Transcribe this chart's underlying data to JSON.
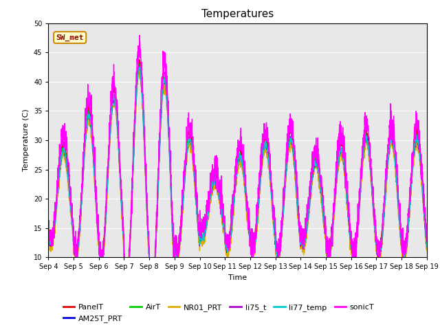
{
  "title": "Temperatures",
  "xlabel": "Time",
  "ylabel": "Temperature (C)",
  "ylim": [
    10,
    50
  ],
  "yticks": [
    10,
    15,
    20,
    25,
    30,
    35,
    40,
    45,
    50
  ],
  "background_color": "#e8e8e8",
  "figure_bg": "#ffffff",
  "series_order": [
    "PanelT",
    "AM25T_PRT",
    "AirT",
    "NR01_PRT",
    "li75_t",
    "li77_temp",
    "sonicT"
  ],
  "series": {
    "PanelT": {
      "color": "#dd0000",
      "lw": 1.0
    },
    "AM25T_PRT": {
      "color": "#0000dd",
      "lw": 1.0
    },
    "AirT": {
      "color": "#00cc00",
      "lw": 1.0
    },
    "NR01_PRT": {
      "color": "#ddaa00",
      "lw": 1.0
    },
    "li75_t": {
      "color": "#aa00cc",
      "lw": 1.0
    },
    "li77_temp": {
      "color": "#00cccc",
      "lw": 1.0
    },
    "sonicT": {
      "color": "#ff00ff",
      "lw": 1.0
    }
  },
  "annotation": {
    "text": "SW_met",
    "facecolor": "#ffffcc",
    "edgecolor": "#cc8800",
    "textcolor": "#880000",
    "fontsize": 8
  },
  "xticklabels": [
    "Sep 4",
    "Sep 5",
    "Sep 6",
    "Sep 7",
    "Sep 8",
    "Sep 9",
    "Sep 10",
    "Sep 11",
    "Sep 12",
    "Sep 13",
    "Sep 14",
    "Sep 15",
    "Sep 16",
    "Sep 17",
    "Sep 18",
    "Sep 19"
  ],
  "legend_fontsize": 8,
  "title_fontsize": 11,
  "n_days": 15,
  "day_bases": [
    20,
    22,
    23,
    24,
    22,
    20,
    18,
    19,
    20,
    20,
    19,
    19,
    20,
    20,
    20
  ],
  "day_amplitudes": [
    8,
    12,
    14,
    18,
    18,
    10,
    5,
    8,
    9,
    10,
    7,
    9,
    10,
    10,
    10
  ]
}
